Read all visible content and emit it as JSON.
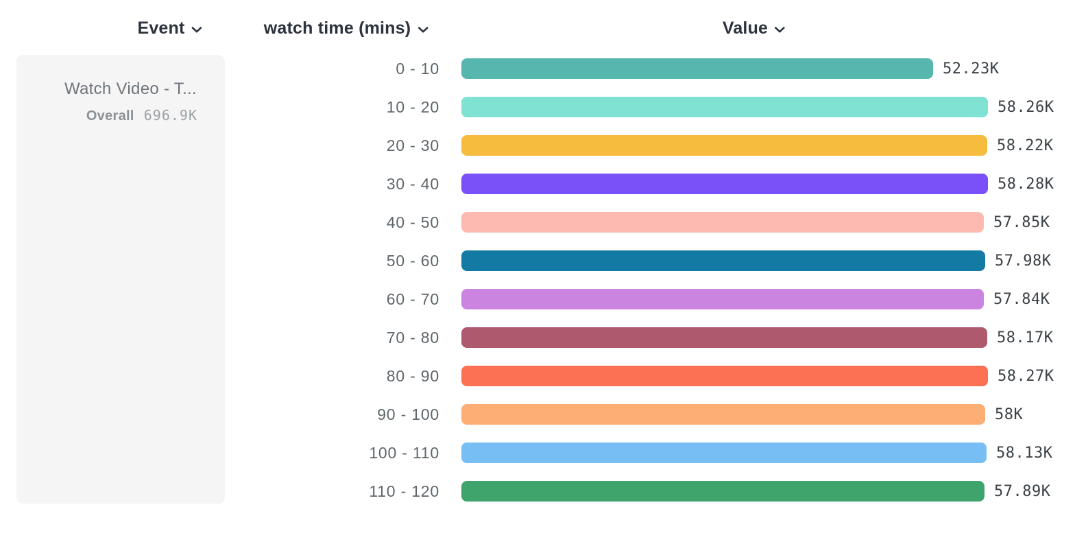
{
  "header": {
    "columns": {
      "event": "Event",
      "bucket": "watch time (mins)",
      "value": "Value"
    }
  },
  "legend": {
    "event_name": "Watch Video - T...",
    "overall_label": "Overall",
    "overall_value": "696.9K"
  },
  "chart_data": {
    "type": "bar",
    "orientation": "horizontal",
    "categories": [
      "0 - 10",
      "10 - 20",
      "20 - 30",
      "30 - 40",
      "40 - 50",
      "50 - 60",
      "60 - 70",
      "70 - 80",
      "80 - 90",
      "90 - 100",
      "100 - 110",
      "110 - 120"
    ],
    "values": [
      52230,
      58260,
      58220,
      58280,
      57850,
      57980,
      57840,
      58170,
      58270,
      58000,
      58130,
      57890
    ],
    "display_values": [
      "52.23K",
      "58.26K",
      "58.22K",
      "58.28K",
      "57.85K",
      "57.98K",
      "57.84K",
      "58.17K",
      "58.27K",
      "58K",
      "58.13K",
      "57.89K"
    ],
    "colors": [
      "#57b6ae",
      "#7fe2d3",
      "#f6bc3d",
      "#7a50f8",
      "#fcbab0",
      "#137ba3",
      "#cb84e0",
      "#af596f",
      "#fc7053",
      "#fcae75",
      "#76bef3",
      "#3ea46c"
    ],
    "series_label": "watch time (mins)",
    "overall_total": "696.9K",
    "legend_entry": "Watch Video - T...",
    "grid": false,
    "value_labels_shown": true
  }
}
